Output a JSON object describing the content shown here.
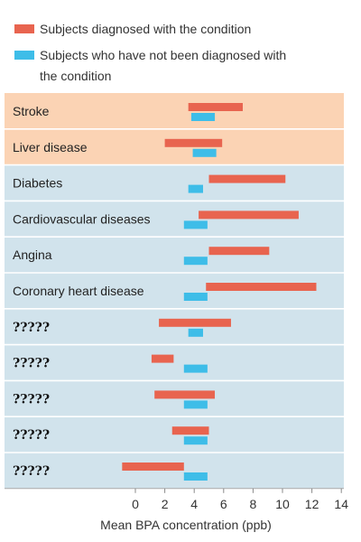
{
  "chart_data": {
    "type": "bar",
    "orientation": "horizontal",
    "categories": [
      "Stroke",
      "Liver disease",
      "Diabetes",
      "Cardiovascular diseases",
      "Angina",
      "Coronary heart disease",
      "?????",
      "?????",
      "?????",
      "?????",
      "?????"
    ],
    "category_background": [
      "orange",
      "orange",
      "blue",
      "blue",
      "blue",
      "blue",
      "blue",
      "blue",
      "blue",
      "blue",
      "blue"
    ],
    "series": [
      {
        "name": "Subjects diagnosed with the condition",
        "color": "#E8644F",
        "ranges": [
          [
            3.6,
            7.3
          ],
          [
            2.0,
            5.9
          ],
          [
            5.0,
            10.2
          ],
          [
            4.3,
            11.1
          ],
          [
            5.0,
            9.1
          ],
          [
            4.8,
            12.3
          ],
          [
            1.6,
            6.5
          ],
          [
            1.1,
            2.6
          ],
          [
            1.3,
            5.4
          ],
          [
            2.5,
            5.0
          ],
          [
            -0.9,
            3.3
          ]
        ]
      },
      {
        "name": "Subjects who have not been diagnosed with the condition",
        "color": "#3EBDE8",
        "ranges": [
          [
            3.8,
            5.4
          ],
          [
            3.9,
            5.5
          ],
          [
            3.6,
            4.6
          ],
          [
            3.3,
            4.9
          ],
          [
            3.3,
            4.9
          ],
          [
            3.3,
            4.9
          ],
          [
            3.6,
            4.6
          ],
          [
            3.3,
            4.9
          ],
          [
            3.3,
            4.9
          ],
          [
            3.3,
            4.9
          ],
          [
            3.3,
            4.9
          ]
        ]
      }
    ],
    "legend": {
      "items": [
        "Subjects diagnosed with the condition",
        "Subjects who have not been diagnosed with the condition"
      ],
      "position": "top-left"
    },
    "x_ticks": [
      "0",
      "2",
      "4",
      "6",
      "8",
      "10",
      "12",
      "14"
    ],
    "xlabel": "Mean BPA concentration (ppb)",
    "ylabel": "",
    "title": "",
    "xlim": [
      -1.1,
      14
    ],
    "grid": false,
    "colors": {
      "orange_band": "#FBD3B4",
      "blue_band": "#D1E3EC",
      "divider": "#FFFFFF"
    }
  }
}
